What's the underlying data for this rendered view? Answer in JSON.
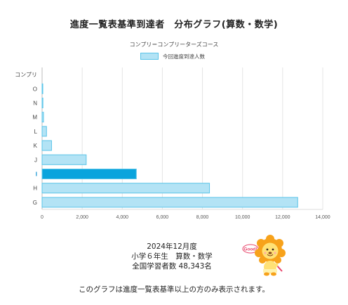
{
  "chart_data": {
    "type": "bar",
    "orientation": "horizontal",
    "title": "進度一覧表基準到達者　分布グラフ(算数・数学)",
    "subtitle": "コンプリ＝コンプリーターズコース",
    "categories": [
      "コンプリ",
      "O",
      "N",
      "M",
      "L",
      "K",
      "J",
      "I",
      "H",
      "G"
    ],
    "series": [
      {
        "name": "今回進度到達人数",
        "values": [
          0,
          10,
          40,
          70,
          220,
          470,
          2200,
          4700,
          8350,
          12750
        ]
      }
    ],
    "highlight_category": "I",
    "xlim": [
      0,
      14000
    ],
    "xticks": [
      "0",
      "2,000",
      "4,000",
      "6,000",
      "8,000",
      "10,000",
      "12,000",
      "14,000"
    ],
    "xtick_values": [
      0,
      2000,
      4000,
      6000,
      8000,
      10000,
      12000,
      14000
    ],
    "grid": true,
    "legend_position": "top-center",
    "colors": {
      "bar_fill": "#b3e3f5",
      "bar_stroke": "#5ac4e8",
      "highlight_fill": "#0aa4dd",
      "highlight_label": "#0a8fd0",
      "grid": "#e4e4e4"
    }
  },
  "info": {
    "line1": "2024年12月度",
    "line2": "小学６年生　算数・数学",
    "line3": "全国学習者数 48,343名"
  },
  "mascot": {
    "speech": "Good!",
    "icon": "lion-mascot-icon"
  },
  "footer": "このグラフは進度一覧表基準以上の方のみ表示されます。"
}
